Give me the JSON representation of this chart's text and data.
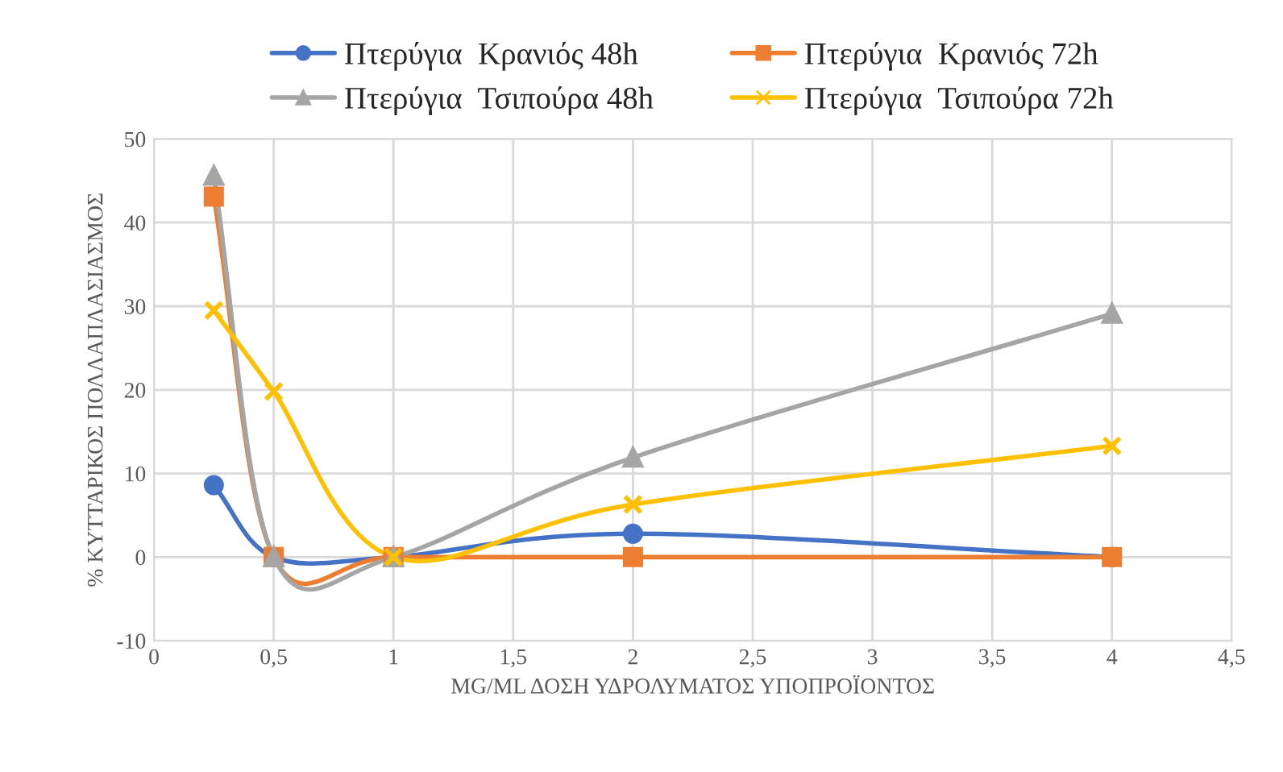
{
  "chart_data": {
    "type": "line",
    "xlabel": "MG/ML ΔΟΣΗ ΥΔΡΟΛΥΜΑΤΟΣ ΥΠΟΠΡΟΪΟΝΤΟΣ",
    "ylabel": "% ΚΥΤΤΑΡΙΚΟΣ ΠΟΛΛΑΠΛΑΣΙΑΣΜΟΣ",
    "x": [
      0.25,
      0.5,
      1,
      2,
      4
    ],
    "series": [
      {
        "name": "Πτερύγια  Κρανιός 48h",
        "color": "#4472c4",
        "marker": "circle",
        "values": [
          8.6,
          0,
          0,
          2.8,
          0
        ]
      },
      {
        "name": "Πτερύγια  Κρανιός 72h",
        "color": "#ed7d31",
        "marker": "square",
        "values": [
          43.1,
          0,
          0,
          0,
          0
        ]
      },
      {
        "name": "Πτερύγια  Τσιπούρα 48h",
        "color": "#a5a5a5",
        "marker": "triangle",
        "values": [
          45.6,
          0,
          0,
          11.9,
          29.1
        ]
      },
      {
        "name": "Πτερύγια  Τσιπούρα 72h",
        "color": "#ffc000",
        "marker": "cross",
        "values": [
          29.5,
          19.8,
          0,
          6.3,
          13.3
        ]
      }
    ],
    "xlim": [
      0,
      4.5
    ],
    "xticks": [
      0,
      {
        "value": 0.5,
        "label": "0,5"
      },
      1,
      {
        "value": 1.5,
        "label": "1,5"
      },
      2,
      {
        "value": 2.5,
        "label": "2,5"
      },
      3,
      {
        "value": 3.5,
        "label": "3,5"
      },
      4,
      {
        "value": 4.5,
        "label": "4,5"
      }
    ],
    "ylim": [
      -10,
      50
    ],
    "yticks": [
      -10,
      0,
      10,
      20,
      30,
      40,
      50
    ],
    "grid": true,
    "legend": "top",
    "line_style": "solid"
  }
}
